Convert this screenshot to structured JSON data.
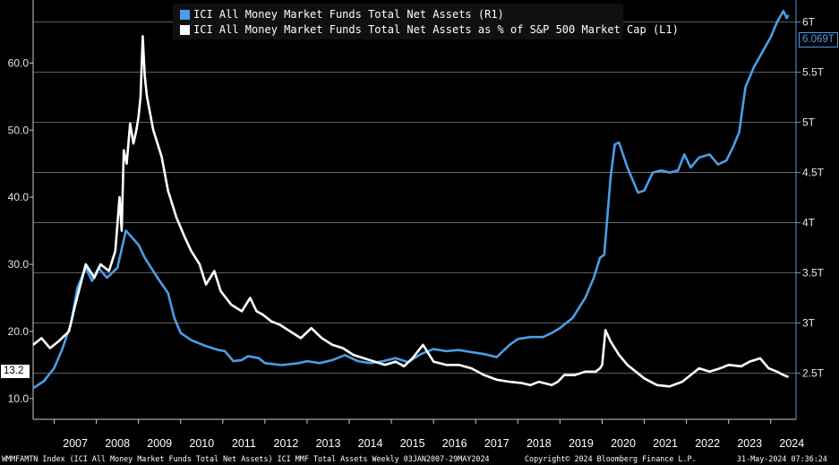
{
  "chart_data": {
    "type": "line",
    "title": "",
    "x_labels": [
      "2007",
      "2008",
      "2009",
      "2010",
      "2011",
      "2012",
      "2013",
      "2014",
      "2015",
      "2016",
      "2017",
      "2018",
      "2019",
      "2020",
      "2021",
      "2022",
      "2023",
      "2024"
    ],
    "xlim": [
      2006.5,
      2024.6
    ],
    "left_axis": {
      "ticks": [
        "10.0",
        "20.0",
        "30.0",
        "40.0",
        "50.0",
        "60.0"
      ],
      "ylim": [
        6.9,
        69.4
      ]
    },
    "right_axis": {
      "ticks": [
        "2.5T",
        "3T",
        "3.5T",
        "4T",
        "4.5T",
        "5T",
        "5.5T",
        "6T"
      ],
      "ylim": [
        2.04,
        6.22
      ]
    },
    "series": [
      {
        "name": "ICI All Money Market Funds Total Net Assets  (R1)",
        "axis": "right",
        "color": "#4a9ee8",
        "last_value": "6.069T",
        "points": [
          [
            2006.5,
            2.35
          ],
          [
            2006.75,
            2.42
          ],
          [
            2007.0,
            2.55
          ],
          [
            2007.2,
            2.75
          ],
          [
            2007.4,
            3.0
          ],
          [
            2007.55,
            3.35
          ],
          [
            2007.75,
            3.55
          ],
          [
            2007.9,
            3.42
          ],
          [
            2008.05,
            3.55
          ],
          [
            2008.25,
            3.45
          ],
          [
            2008.5,
            3.55
          ],
          [
            2008.7,
            3.92
          ],
          [
            2008.85,
            3.85
          ],
          [
            2009.0,
            3.78
          ],
          [
            2009.15,
            3.65
          ],
          [
            2009.3,
            3.55
          ],
          [
            2009.5,
            3.42
          ],
          [
            2009.7,
            3.3
          ],
          [
            2009.85,
            3.05
          ],
          [
            2010.0,
            2.9
          ],
          [
            2010.25,
            2.83
          ],
          [
            2010.6,
            2.77
          ],
          [
            2010.9,
            2.73
          ],
          [
            2011.05,
            2.72
          ],
          [
            2011.25,
            2.62
          ],
          [
            2011.45,
            2.63
          ],
          [
            2011.6,
            2.67
          ],
          [
            2011.85,
            2.65
          ],
          [
            2012.0,
            2.6
          ],
          [
            2012.4,
            2.58
          ],
          [
            2012.8,
            2.6
          ],
          [
            2013.0,
            2.62
          ],
          [
            2013.3,
            2.6
          ],
          [
            2013.6,
            2.63
          ],
          [
            2013.9,
            2.68
          ],
          [
            2014.2,
            2.62
          ],
          [
            2014.5,
            2.6
          ],
          [
            2014.8,
            2.62
          ],
          [
            2015.1,
            2.65
          ],
          [
            2015.4,
            2.61
          ],
          [
            2015.7,
            2.69
          ],
          [
            2016.0,
            2.74
          ],
          [
            2016.3,
            2.72
          ],
          [
            2016.6,
            2.73
          ],
          [
            2016.9,
            2.71
          ],
          [
            2017.2,
            2.69
          ],
          [
            2017.5,
            2.66
          ],
          [
            2017.8,
            2.78
          ],
          [
            2018.0,
            2.84
          ],
          [
            2018.3,
            2.86
          ],
          [
            2018.6,
            2.86
          ],
          [
            2018.8,
            2.9
          ],
          [
            2019.0,
            2.95
          ],
          [
            2019.3,
            3.05
          ],
          [
            2019.6,
            3.25
          ],
          [
            2019.8,
            3.45
          ],
          [
            2019.95,
            3.65
          ],
          [
            2020.05,
            3.68
          ],
          [
            2020.2,
            4.45
          ],
          [
            2020.3,
            4.78
          ],
          [
            2020.4,
            4.8
          ],
          [
            2020.6,
            4.55
          ],
          [
            2020.85,
            4.3
          ],
          [
            2021.0,
            4.32
          ],
          [
            2021.2,
            4.5
          ],
          [
            2021.4,
            4.52
          ],
          [
            2021.6,
            4.5
          ],
          [
            2021.8,
            4.52
          ],
          [
            2021.95,
            4.68
          ],
          [
            2022.1,
            4.55
          ],
          [
            2022.3,
            4.65
          ],
          [
            2022.55,
            4.68
          ],
          [
            2022.75,
            4.58
          ],
          [
            2022.95,
            4.62
          ],
          [
            2023.1,
            4.75
          ],
          [
            2023.25,
            4.9
          ],
          [
            2023.4,
            5.35
          ],
          [
            2023.6,
            5.55
          ],
          [
            2023.8,
            5.7
          ],
          [
            2024.0,
            5.85
          ],
          [
            2024.15,
            6.0
          ],
          [
            2024.3,
            6.11
          ],
          [
            2024.38,
            6.04
          ],
          [
            2024.42,
            6.07
          ]
        ]
      },
      {
        "name": "ICI All Money Market Funds Total Net Assets as % of S&P 500 Market Cap (L1)",
        "axis": "left",
        "color": "#ffffff",
        "last_value": "13.2",
        "points": [
          [
            2006.5,
            18.0
          ],
          [
            2006.7,
            19.0
          ],
          [
            2006.9,
            17.5
          ],
          [
            2007.1,
            18.5
          ],
          [
            2007.35,
            20.0
          ],
          [
            2007.5,
            24.0
          ],
          [
            2007.75,
            30.0
          ],
          [
            2007.95,
            28.0
          ],
          [
            2008.1,
            30.0
          ],
          [
            2008.3,
            29.0
          ],
          [
            2008.45,
            32.0
          ],
          [
            2008.55,
            40.0
          ],
          [
            2008.6,
            35.0
          ],
          [
            2008.65,
            47.0
          ],
          [
            2008.72,
            45.0
          ],
          [
            2008.8,
            51.0
          ],
          [
            2008.88,
            48.0
          ],
          [
            2008.95,
            50.0
          ],
          [
            2009.0,
            52.0
          ],
          [
            2009.05,
            55.0
          ],
          [
            2009.1,
            64.0
          ],
          [
            2009.15,
            58.0
          ],
          [
            2009.2,
            55.0
          ],
          [
            2009.35,
            50.0
          ],
          [
            2009.55,
            46.0
          ],
          [
            2009.7,
            41.0
          ],
          [
            2009.9,
            37.0
          ],
          [
            2010.1,
            34.0
          ],
          [
            2010.25,
            32.0
          ],
          [
            2010.45,
            30.0
          ],
          [
            2010.6,
            27.0
          ],
          [
            2010.8,
            29.0
          ],
          [
            2010.95,
            26.0
          ],
          [
            2011.2,
            24.0
          ],
          [
            2011.45,
            23.0
          ],
          [
            2011.65,
            25.0
          ],
          [
            2011.8,
            23.0
          ],
          [
            2011.95,
            22.5
          ],
          [
            2012.15,
            21.5
          ],
          [
            2012.35,
            21.0
          ],
          [
            2012.6,
            20.0
          ],
          [
            2012.85,
            19.0
          ],
          [
            2013.1,
            20.5
          ],
          [
            2013.35,
            19.0
          ],
          [
            2013.6,
            18.0
          ],
          [
            2013.85,
            17.5
          ],
          [
            2014.1,
            16.5
          ],
          [
            2014.35,
            16.0
          ],
          [
            2014.6,
            15.5
          ],
          [
            2014.85,
            15.0
          ],
          [
            2015.1,
            15.5
          ],
          [
            2015.3,
            14.8
          ],
          [
            2015.5,
            16.0
          ],
          [
            2015.75,
            18.0
          ],
          [
            2016.0,
            15.5
          ],
          [
            2016.3,
            15.0
          ],
          [
            2016.6,
            15.0
          ],
          [
            2016.9,
            14.5
          ],
          [
            2017.2,
            13.5
          ],
          [
            2017.5,
            12.8
          ],
          [
            2017.8,
            12.5
          ],
          [
            2018.1,
            12.3
          ],
          [
            2018.3,
            12.0
          ],
          [
            2018.5,
            12.5
          ],
          [
            2018.8,
            12.0
          ],
          [
            2018.95,
            12.5
          ],
          [
            2019.1,
            13.5
          ],
          [
            2019.35,
            13.5
          ],
          [
            2019.6,
            14.0
          ],
          [
            2019.85,
            14.0
          ],
          [
            2019.95,
            14.5
          ],
          [
            2020.0,
            15.0
          ],
          [
            2020.08,
            20.2
          ],
          [
            2020.2,
            18.5
          ],
          [
            2020.4,
            16.5
          ],
          [
            2020.6,
            15.0
          ],
          [
            2020.8,
            14.0
          ],
          [
            2021.0,
            13.0
          ],
          [
            2021.3,
            12.0
          ],
          [
            2021.6,
            11.8
          ],
          [
            2021.9,
            12.5
          ],
          [
            2022.1,
            13.5
          ],
          [
            2022.3,
            14.5
          ],
          [
            2022.55,
            14.0
          ],
          [
            2022.8,
            14.5
          ],
          [
            2023.0,
            15.0
          ],
          [
            2023.3,
            14.8
          ],
          [
            2023.5,
            15.5
          ],
          [
            2023.75,
            16.0
          ],
          [
            2023.95,
            14.5
          ],
          [
            2024.15,
            14.0
          ],
          [
            2024.3,
            13.5
          ],
          [
            2024.42,
            13.2
          ]
        ]
      }
    ],
    "legend": "top-center",
    "grid": true,
    "footer": {
      "left": "WMMFAMTN Index (ICI All Money Market Funds Total Net Assets) ICI MMF Total Assets  Weekly 03JAN2007-29MAY2024",
      "center": "Copyright© 2024 Bloomberg Finance L.P.",
      "right": "31-May-2024 07:36:24"
    }
  },
  "colors": {
    "background": "#000000",
    "blue": "#4a9ee8",
    "white": "#ffffff",
    "grid": "#7a7a7a"
  }
}
